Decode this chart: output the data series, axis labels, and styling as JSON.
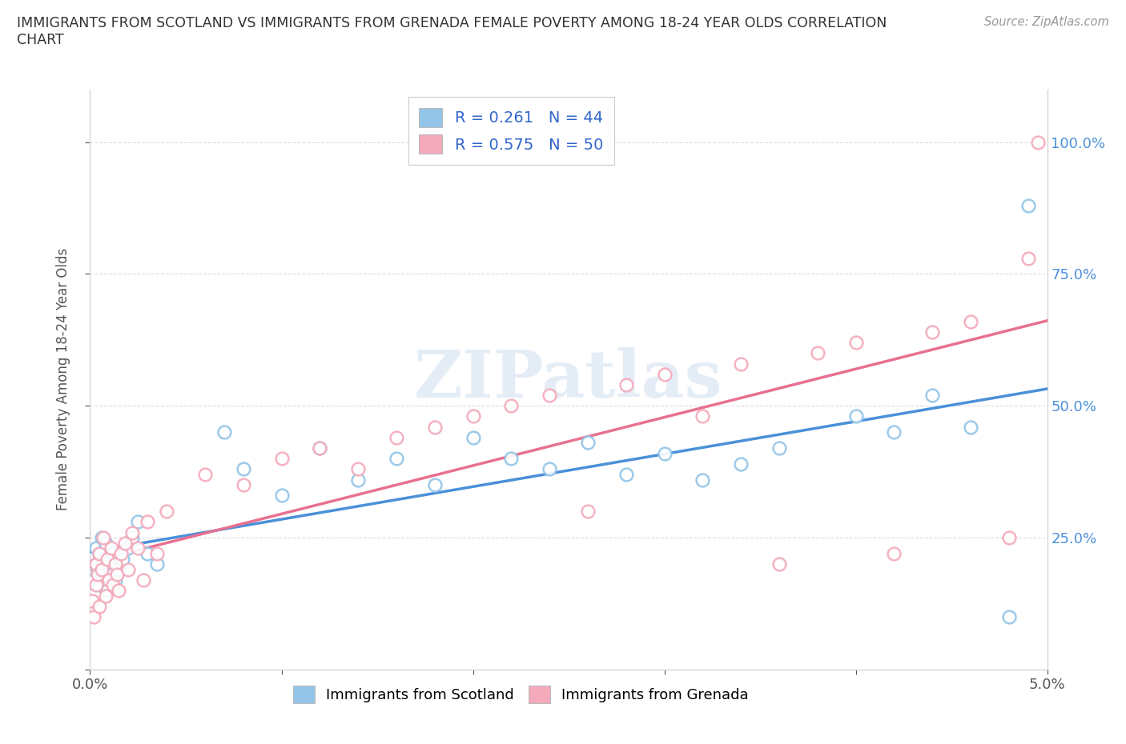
{
  "title": "IMMIGRANTS FROM SCOTLAND VS IMMIGRANTS FROM GRENADA FEMALE POVERTY AMONG 18-24 YEAR OLDS CORRELATION\nCHART",
  "source": "Source: ZipAtlas.com",
  "xlabel": "",
  "ylabel": "Female Poverty Among 18-24 Year Olds",
  "xlim": [
    0.0,
    0.05
  ],
  "ylim": [
    0.0,
    1.1
  ],
  "xticks": [
    0.0,
    0.01,
    0.02,
    0.03,
    0.04,
    0.05
  ],
  "xticklabels": [
    "0.0%",
    "",
    "",
    "",
    "",
    "5.0%"
  ],
  "yticks": [
    0.0,
    0.25,
    0.5,
    0.75,
    1.0
  ],
  "yticklabels": [
    "",
    "25.0%",
    "50.0%",
    "75.0%",
    "100.0%"
  ],
  "scotland_color": "#92C5E8",
  "grenada_color": "#F4AABB",
  "scotland_line_color": "#4A90D9",
  "grenada_line_color": "#E87090",
  "scotland_R": 0.261,
  "scotland_N": 44,
  "grenada_R": 0.575,
  "grenada_N": 50,
  "watermark": "ZIPatlas",
  "legend_scotland_label": "Immigrants from Scotland",
  "legend_grenada_label": "Immigrants from Grenada",
  "scotland_x": [
    0.0002,
    0.0003,
    0.0003,
    0.0004,
    0.0005,
    0.0005,
    0.0006,
    0.0007,
    0.0007,
    0.0008,
    0.0009,
    0.001,
    0.0011,
    0.0012,
    0.0013,
    0.0015,
    0.0017,
    0.002,
    0.0022,
    0.0025,
    0.003,
    0.0035,
    0.007,
    0.008,
    0.01,
    0.012,
    0.014,
    0.016,
    0.018,
    0.02,
    0.022,
    0.024,
    0.026,
    0.028,
    0.03,
    0.032,
    0.034,
    0.036,
    0.04,
    0.042,
    0.044,
    0.046,
    0.048,
    0.049
  ],
  "scotland_y": [
    0.17,
    0.2,
    0.23,
    0.19,
    0.16,
    0.22,
    0.25,
    0.18,
    0.21,
    0.24,
    0.15,
    0.2,
    0.18,
    0.22,
    0.17,
    0.19,
    0.21,
    0.23,
    0.25,
    0.28,
    0.22,
    0.2,
    0.45,
    0.38,
    0.33,
    0.42,
    0.36,
    0.4,
    0.35,
    0.44,
    0.4,
    0.38,
    0.43,
    0.37,
    0.41,
    0.36,
    0.39,
    0.42,
    0.48,
    0.45,
    0.52,
    0.46,
    0.1,
    0.88
  ],
  "grenada_x": [
    0.0001,
    0.0002,
    0.0003,
    0.0003,
    0.0004,
    0.0005,
    0.0005,
    0.0006,
    0.0007,
    0.0008,
    0.0009,
    0.001,
    0.0011,
    0.0012,
    0.0013,
    0.0014,
    0.0015,
    0.0016,
    0.0018,
    0.002,
    0.0022,
    0.0025,
    0.0028,
    0.003,
    0.0035,
    0.004,
    0.006,
    0.008,
    0.01,
    0.012,
    0.014,
    0.016,
    0.018,
    0.02,
    0.022,
    0.024,
    0.026,
    0.028,
    0.03,
    0.032,
    0.034,
    0.036,
    0.038,
    0.04,
    0.042,
    0.044,
    0.046,
    0.048,
    0.049,
    0.0495
  ],
  "grenada_y": [
    0.13,
    0.1,
    0.16,
    0.2,
    0.18,
    0.22,
    0.12,
    0.19,
    0.25,
    0.14,
    0.21,
    0.17,
    0.23,
    0.16,
    0.2,
    0.18,
    0.15,
    0.22,
    0.24,
    0.19,
    0.26,
    0.23,
    0.17,
    0.28,
    0.22,
    0.3,
    0.37,
    0.35,
    0.4,
    0.42,
    0.38,
    0.44,
    0.46,
    0.48,
    0.5,
    0.52,
    0.3,
    0.54,
    0.56,
    0.48,
    0.58,
    0.2,
    0.6,
    0.62,
    0.22,
    0.64,
    0.66,
    0.25,
    0.78,
    1.0
  ]
}
